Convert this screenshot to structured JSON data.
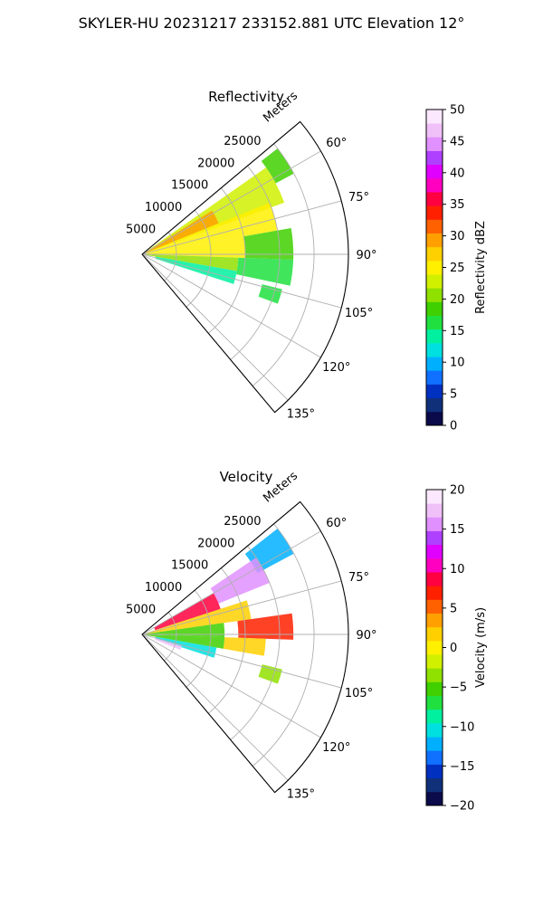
{
  "title": "SKYLER-HU  20231217  233152.881 UTC Elevation 12°",
  "colors": {
    "reflectivity_scale": [
      "#0b0a4a",
      "#10307a",
      "#0030c0",
      "#1070ff",
      "#00b0ff",
      "#00e0e0",
      "#00f0a0",
      "#20e040",
      "#40d000",
      "#90e000",
      "#d0f000",
      "#fff000",
      "#ffd000",
      "#ffa000",
      "#ff6000",
      "#ff2000",
      "#ff0040",
      "#ff00c0",
      "#e000ff",
      "#b040ff",
      "#e090ff",
      "#f0c0f8",
      "#fbe8ff"
    ],
    "velocity_scale": [
      "#0b0a4a",
      "#10307a",
      "#0030c0",
      "#1070ff",
      "#00b0ff",
      "#00e0e0",
      "#00f0a0",
      "#20e040",
      "#40d000",
      "#90e000",
      "#d0f000",
      "#fff000",
      "#ffd000",
      "#ffa000",
      "#ff6000",
      "#ff2000",
      "#ff0040",
      "#ff00c0",
      "#e000ff",
      "#b040ff",
      "#e090ff",
      "#f0c0f8",
      "#fbe8ff"
    ]
  },
  "chart_data": [
    {
      "type": "heatmap",
      "projection": "polar-sector",
      "title": "Reflectivity",
      "radial_label": "Meters",
      "radial_ticks": [
        5000,
        10000,
        15000,
        20000,
        25000
      ],
      "radial_tick_labels": [
        "5000",
        "10000",
        "15000",
        "20000",
        "25000"
      ],
      "theta_ticks": [
        60,
        75,
        90,
        105,
        120,
        135
      ],
      "theta_tick_labels": [
        "60°",
        "75°",
        "90°",
        "105°",
        "120°",
        "135°"
      ],
      "theta_range": [
        50,
        140
      ],
      "r_range": [
        0,
        30000
      ],
      "grid": true,
      "colorbar": {
        "label": "Reflectivity dBZ",
        "range": [
          0,
          50
        ],
        "ticks": [
          0,
          5,
          10,
          15,
          20,
          25,
          30,
          35,
          40,
          45,
          50
        ],
        "tick_labels": [
          "0",
          "5",
          "10",
          "15",
          "20",
          "25",
          "30",
          "35",
          "40",
          "45",
          "50"
        ]
      },
      "echo_regions": [
        {
          "theta": [
            52,
            62
          ],
          "r": [
            22000,
            25000
          ],
          "value": 18
        },
        {
          "theta": [
            55,
            70
          ],
          "r": [
            0,
            22000
          ],
          "value": 22
        },
        {
          "theta": [
            58,
            68
          ],
          "r": [
            0,
            12000
          ],
          "value": 30
        },
        {
          "theta": [
            68,
            80
          ],
          "r": [
            0,
            20000
          ],
          "value": 24
        },
        {
          "theta": [
            80,
            92
          ],
          "r": [
            0,
            15000
          ],
          "value": 25
        },
        {
          "theta": [
            80,
            92
          ],
          "r": [
            15000,
            22000
          ],
          "value": 18
        },
        {
          "theta": [
            92,
            100
          ],
          "r": [
            0,
            14000
          ],
          "value": 20
        },
        {
          "theta": [
            92,
            102
          ],
          "r": [
            14000,
            22000
          ],
          "value": 17
        },
        {
          "theta": [
            100,
            108
          ],
          "r": [
            2000,
            14000
          ],
          "value": 14
        },
        {
          "theta": [
            104,
            110
          ],
          "r": [
            18000,
            21000
          ],
          "value": 17
        }
      ]
    },
    {
      "type": "heatmap",
      "projection": "polar-sector",
      "title": "Velocity",
      "radial_label": "Meters",
      "radial_ticks": [
        5000,
        10000,
        15000,
        20000,
        25000
      ],
      "radial_tick_labels": [
        "5000",
        "10000",
        "15000",
        "20000",
        "25000"
      ],
      "theta_ticks": [
        60,
        75,
        90,
        105,
        120,
        135
      ],
      "theta_tick_labels": [
        "60°",
        "75°",
        "90°",
        "105°",
        "120°",
        "135°"
      ],
      "theta_range": [
        50,
        140
      ],
      "r_range": [
        0,
        30000
      ],
      "grid": true,
      "colorbar": {
        "label": "Velocity (m/s)",
        "range": [
          -20,
          20
        ],
        "ticks": [
          -20,
          -15,
          -10,
          -5,
          0,
          5,
          10,
          15,
          20
        ],
        "tick_labels": [
          "−20",
          "−15",
          "−10",
          "−5",
          "0",
          "5",
          "10",
          "15",
          "20"
        ]
      },
      "echo_regions": [
        {
          "theta": [
            52,
            62
          ],
          "r": [
            19000,
            25000
          ],
          "value": -12
        },
        {
          "theta": [
            56,
            68
          ],
          "r": [
            12000,
            20000
          ],
          "value": 15
        },
        {
          "theta": [
            60,
            72
          ],
          "r": [
            2000,
            12000
          ],
          "value": 9
        },
        {
          "theta": [
            72,
            82
          ],
          "r": [
            0,
            16000
          ],
          "value": 2
        },
        {
          "theta": [
            82,
            92
          ],
          "r": [
            0,
            12000
          ],
          "value": -5
        },
        {
          "theta": [
            82,
            92
          ],
          "r": [
            14000,
            22000
          ],
          "value": 7
        },
        {
          "theta": [
            92,
            100
          ],
          "r": [
            0,
            12000
          ],
          "value": -6
        },
        {
          "theta": [
            92,
            100
          ],
          "r": [
            12000,
            18000
          ],
          "value": 2
        },
        {
          "theta": [
            100,
            108
          ],
          "r": [
            2000,
            11000
          ],
          "value": -11
        },
        {
          "theta": [
            104,
            110
          ],
          "r": [
            18000,
            21000
          ],
          "value": -3
        },
        {
          "theta": [
            106,
            112
          ],
          "r": [
            2000,
            6000
          ],
          "value": 17
        }
      ]
    }
  ]
}
